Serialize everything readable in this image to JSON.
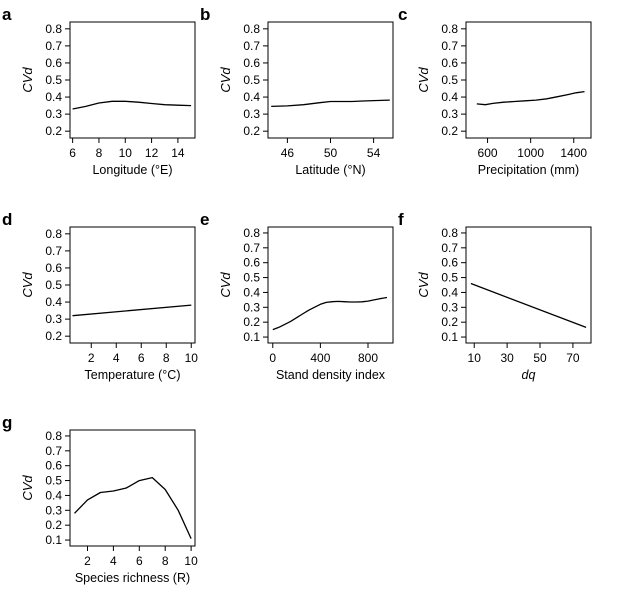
{
  "chart_data": [
    {
      "panel": "a",
      "type": "line",
      "xlabel": "Longitude (°E)",
      "xlabel_italic": false,
      "ylabel": "CVd",
      "xlim": [
        5.8,
        15.3
      ],
      "ylim": [
        0.16,
        0.84
      ],
      "xticks": [
        6,
        8,
        10,
        12,
        14
      ],
      "xtick_labels": [
        "6",
        "8",
        "10",
        "12",
        "14"
      ],
      "yticks": [
        0.2,
        0.3,
        0.4,
        0.5,
        0.6,
        0.7,
        0.8
      ],
      "ytick_labels": [
        "0.2",
        "0.3",
        "0.4",
        "0.5",
        "0.6",
        "0.7",
        "0.8"
      ],
      "x": [
        6,
        7,
        8,
        9,
        10,
        11,
        12,
        13,
        14,
        15
      ],
      "y": [
        0.33,
        0.345,
        0.365,
        0.375,
        0.375,
        0.37,
        0.362,
        0.355,
        0.352,
        0.35
      ]
    },
    {
      "panel": "b",
      "type": "line",
      "xlabel": "Latitude (°N)",
      "xlabel_italic": false,
      "ylabel": "CVd",
      "xlim": [
        44.2,
        55.8
      ],
      "ylim": [
        0.16,
        0.84
      ],
      "xticks": [
        46,
        50,
        54
      ],
      "xtick_labels": [
        "46",
        "50",
        "54"
      ],
      "yticks": [
        0.2,
        0.3,
        0.4,
        0.5,
        0.6,
        0.7,
        0.8
      ],
      "ytick_labels": [
        "0.2",
        "0.3",
        "0.4",
        "0.5",
        "0.6",
        "0.7",
        "0.8"
      ],
      "x": [
        44.5,
        46,
        47.5,
        49,
        50,
        51,
        52,
        53,
        54,
        55.5
      ],
      "y": [
        0.345,
        0.348,
        0.355,
        0.367,
        0.374,
        0.374,
        0.374,
        0.377,
        0.379,
        0.382
      ]
    },
    {
      "panel": "c",
      "type": "line",
      "xlabel": "Precipitation (mm)",
      "xlabel_italic": false,
      "ylabel": "CVd",
      "xlim": [
        400,
        1560
      ],
      "ylim": [
        0.16,
        0.84
      ],
      "xticks": [
        600,
        1000,
        1400
      ],
      "xtick_labels": [
        "600",
        "1000",
        "1400"
      ],
      "yticks": [
        0.2,
        0.3,
        0.4,
        0.5,
        0.6,
        0.7,
        0.8
      ],
      "ytick_labels": [
        "0.2",
        "0.3",
        "0.4",
        "0.5",
        "0.6",
        "0.7",
        "0.8"
      ],
      "x": [
        500,
        580,
        650,
        750,
        850,
        950,
        1050,
        1150,
        1250,
        1350,
        1420,
        1500
      ],
      "y": [
        0.36,
        0.355,
        0.363,
        0.37,
        0.374,
        0.378,
        0.382,
        0.39,
        0.402,
        0.415,
        0.425,
        0.432
      ]
    },
    {
      "panel": "d",
      "type": "line",
      "xlabel": "Temperature (°C)",
      "xlabel_italic": false,
      "ylabel": "CVd",
      "xlim": [
        0.3,
        10.3
      ],
      "ylim": [
        0.16,
        0.84
      ],
      "xticks": [
        2,
        4,
        6,
        8,
        10
      ],
      "xtick_labels": [
        "2",
        "4",
        "6",
        "8",
        "10"
      ],
      "yticks": [
        0.2,
        0.3,
        0.4,
        0.5,
        0.6,
        0.7,
        0.8
      ],
      "ytick_labels": [
        "0.2",
        "0.3",
        "0.4",
        "0.5",
        "0.6",
        "0.7",
        "0.8"
      ],
      "x": [
        0.5,
        10
      ],
      "y": [
        0.32,
        0.382
      ]
    },
    {
      "panel": "e",
      "type": "line",
      "xlabel": "Stand density index",
      "xlabel_italic": false,
      "ylabel": "CVd",
      "xlim": [
        -40,
        1010
      ],
      "ylim": [
        0.06,
        0.84
      ],
      "xticks": [
        0,
        400,
        800
      ],
      "xtick_labels": [
        "0",
        "400",
        "800"
      ],
      "yticks": [
        0.1,
        0.2,
        0.3,
        0.4,
        0.5,
        0.6,
        0.7,
        0.8
      ],
      "ytick_labels": [
        "0.1",
        "0.2",
        "0.3",
        "0.4",
        "0.5",
        "0.6",
        "0.7",
        "0.8"
      ],
      "x": [
        0,
        50,
        100,
        150,
        200,
        250,
        300,
        350,
        400,
        450,
        500,
        550,
        600,
        650,
        700,
        750,
        800,
        850,
        900,
        960
      ],
      "y": [
        0.15,
        0.165,
        0.185,
        0.205,
        0.23,
        0.255,
        0.28,
        0.3,
        0.32,
        0.333,
        0.338,
        0.34,
        0.338,
        0.336,
        0.336,
        0.337,
        0.342,
        0.35,
        0.358,
        0.366
      ]
    },
    {
      "panel": "f",
      "type": "line",
      "xlabel": "dq",
      "xlabel_italic": true,
      "ylabel": "CVd",
      "xlim": [
        5,
        81
      ],
      "ylim": [
        0.06,
        0.84
      ],
      "xticks": [
        10,
        30,
        50,
        70
      ],
      "xtick_labels": [
        "10",
        "30",
        "50",
        "70"
      ],
      "yticks": [
        0.1,
        0.2,
        0.3,
        0.4,
        0.5,
        0.6,
        0.7,
        0.8
      ],
      "ytick_labels": [
        "0.1",
        "0.2",
        "0.3",
        "0.4",
        "0.5",
        "0.6",
        "0.7",
        "0.8"
      ],
      "x": [
        8,
        78
      ],
      "y": [
        0.46,
        0.165
      ]
    },
    {
      "panel": "g",
      "type": "line",
      "xlabel": "Species richness (R)",
      "xlabel_italic": false,
      "ylabel": "CVd",
      "xlim": [
        0.65,
        10.3
      ],
      "ylim": [
        0.06,
        0.84
      ],
      "xticks": [
        2,
        4,
        6,
        8,
        10
      ],
      "xtick_labels": [
        "2",
        "4",
        "6",
        "8",
        "10"
      ],
      "yticks": [
        0.1,
        0.2,
        0.3,
        0.4,
        0.5,
        0.6,
        0.7,
        0.8
      ],
      "ytick_labels": [
        "0.1",
        "0.2",
        "0.3",
        "0.4",
        "0.5",
        "0.6",
        "0.7",
        "0.8"
      ],
      "x": [
        1,
        2,
        3,
        4,
        5,
        6,
        7,
        8,
        9,
        10
      ],
      "y": [
        0.28,
        0.37,
        0.42,
        0.43,
        0.45,
        0.5,
        0.52,
        0.44,
        0.3,
        0.11
      ]
    }
  ]
}
